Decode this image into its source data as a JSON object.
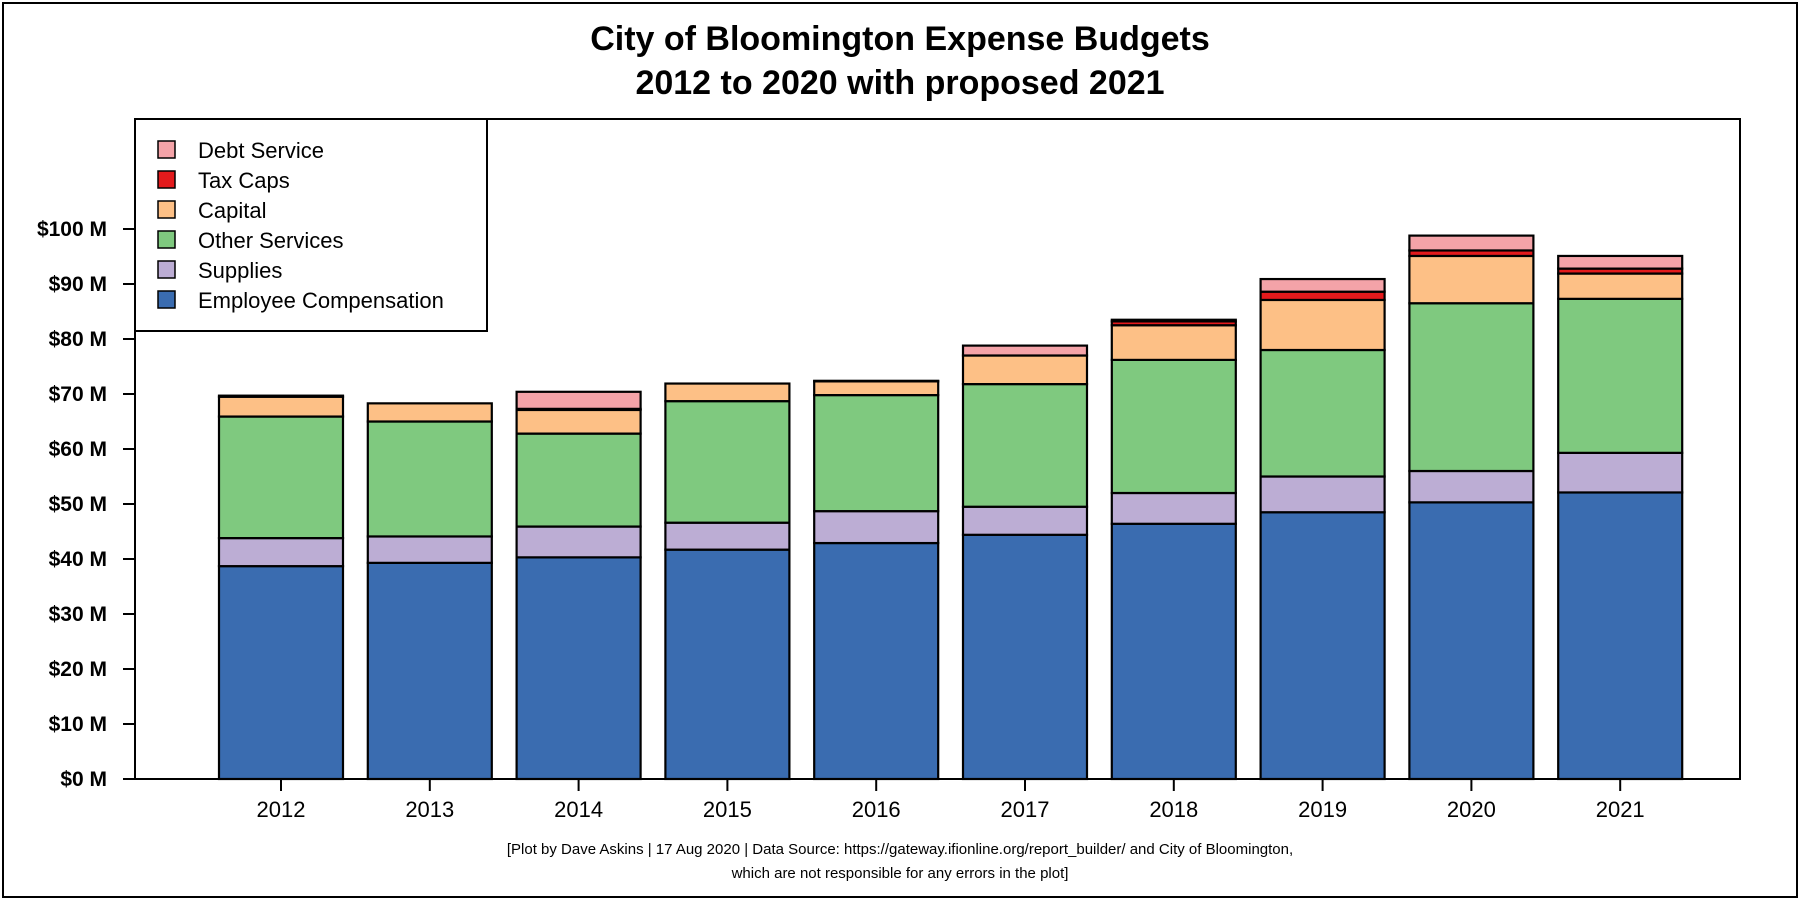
{
  "chart_data": {
    "type": "bar",
    "stacked": true,
    "title": "City of Bloomington Expense Budgets",
    "subtitle": "2012 to 2020 with proposed 2021",
    "caption_line1": "[Plot by Dave Askins | 17 Aug 2020 | Data Source: https://gateway.ifionline.org/report_builder/ and City of Bloomington,",
    "caption_line2": "which are not responsible for any errors in the plot]",
    "xlabel": "",
    "ylabel": "",
    "ylim": [
      0,
      120
    ],
    "y_unit": "millions of dollars",
    "y_ticks": [
      {
        "value": 0,
        "label": "$0 M"
      },
      {
        "value": 10,
        "label": "$10 M"
      },
      {
        "value": 20,
        "label": "$20 M"
      },
      {
        "value": 30,
        "label": "$30 M"
      },
      {
        "value": 40,
        "label": "$40 M"
      },
      {
        "value": 50,
        "label": "$50 M"
      },
      {
        "value": 60,
        "label": "$60 M"
      },
      {
        "value": 70,
        "label": "$70 M"
      },
      {
        "value": 80,
        "label": "$80 M"
      },
      {
        "value": 90,
        "label": "$90 M"
      },
      {
        "value": 100,
        "label": "$100 M"
      }
    ],
    "categories": [
      "2012",
      "2013",
      "2014",
      "2015",
      "2016",
      "2017",
      "2018",
      "2019",
      "2020",
      "2021"
    ],
    "series": [
      {
        "name": "Employee Compensation",
        "color": "#3a6cb0",
        "values": [
          38.7,
          39.3,
          40.3,
          41.7,
          42.9,
          44.4,
          46.4,
          48.5,
          50.3,
          52.1
        ]
      },
      {
        "name": "Supplies",
        "color": "#bcadd4",
        "values": [
          5.1,
          4.8,
          5.6,
          4.9,
          5.8,
          5.1,
          5.6,
          6.5,
          5.7,
          7.2
        ]
      },
      {
        "name": "Other Services",
        "color": "#7fc97f",
        "values": [
          22.1,
          20.9,
          16.9,
          22.1,
          21.1,
          22.3,
          24.2,
          23.0,
          30.5,
          28.0
        ]
      },
      {
        "name": "Capital",
        "color": "#fdc086",
        "values": [
          3.6,
          3.3,
          4.3,
          3.2,
          2.5,
          5.2,
          6.3,
          9.1,
          8.6,
          4.6
        ]
      },
      {
        "name": "Tax Caps",
        "color": "#e31a1c",
        "values": [
          0.2,
          0.0,
          0.2,
          0.0,
          0.1,
          0.0,
          0.7,
          1.5,
          1.0,
          0.9
        ]
      },
      {
        "name": "Debt Service",
        "color": "#f4a3a8",
        "values": [
          0.0,
          0.0,
          3.1,
          0.0,
          0.0,
          1.8,
          0.3,
          2.3,
          2.7,
          2.3
        ]
      }
    ],
    "legend": {
      "position": "top-left",
      "order": [
        "Debt Service",
        "Tax Caps",
        "Capital",
        "Other Services",
        "Supplies",
        "Employee Compensation"
      ]
    },
    "grid": false
  }
}
